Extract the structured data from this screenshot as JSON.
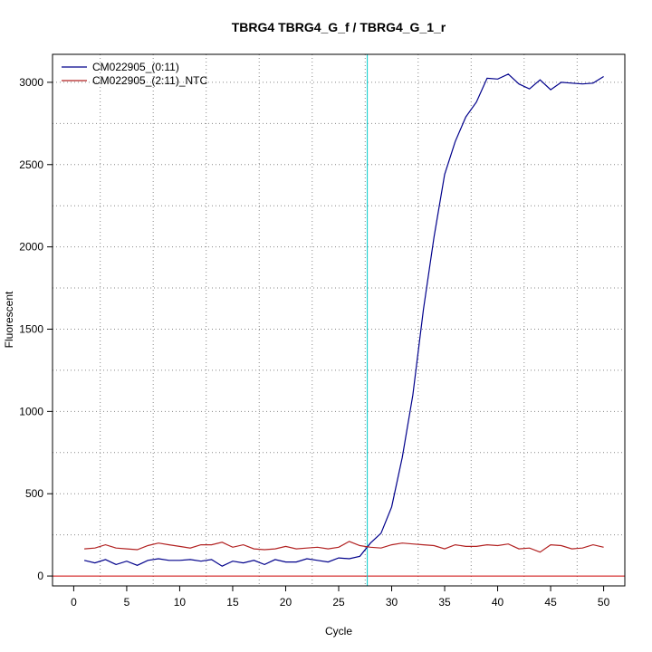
{
  "chart_data": {
    "type": "line",
    "title": "TBRG4  TBRG4_G_f / TBRG4_G_1_r",
    "xlabel": "Cycle",
    "ylabel": "Fluorescent",
    "xlim": [
      -2,
      52
    ],
    "ylim": [
      -60,
      3170
    ],
    "x_ticks": [
      0,
      5,
      10,
      15,
      20,
      25,
      30,
      35,
      40,
      45,
      50
    ],
    "y_ticks": [
      0,
      500,
      1000,
      1500,
      2000,
      2500,
      3000
    ],
    "grid": true,
    "legend_position": "top-left",
    "threshold_cycle": 27.7,
    "threshold_color": "#00cccc",
    "baseline": 0,
    "baseline_color": "#cc0000",
    "x": [
      1,
      2,
      3,
      4,
      5,
      6,
      7,
      8,
      9,
      10,
      11,
      12,
      13,
      14,
      15,
      16,
      17,
      18,
      19,
      20,
      21,
      22,
      23,
      24,
      25,
      26,
      27,
      28,
      29,
      30,
      31,
      32,
      33,
      34,
      35,
      36,
      37,
      38,
      39,
      40,
      41,
      42,
      43,
      44,
      45,
      46,
      47,
      48,
      49,
      50
    ],
    "series": [
      {
        "name": "CM022905_(0:11)",
        "color": "#00008b",
        "values": [
          95,
          80,
          100,
          70,
          90,
          65,
          95,
          105,
          95,
          95,
          100,
          90,
          100,
          60,
          90,
          80,
          95,
          70,
          100,
          85,
          85,
          105,
          95,
          85,
          110,
          105,
          120,
          200,
          260,
          420,
          720,
          1100,
          1620,
          2060,
          2440,
          2640,
          2790,
          2880,
          3025,
          3020,
          3050,
          2990,
          2960,
          3015,
          2955,
          3000,
          2995,
          2990,
          2995,
          3035
        ]
      },
      {
        "name": "CM022905_(2:11)_NTC",
        "color": "#b22222",
        "values": [
          165,
          170,
          190,
          170,
          165,
          160,
          185,
          200,
          190,
          180,
          170,
          190,
          190,
          205,
          175,
          190,
          165,
          160,
          165,
          180,
          165,
          170,
          175,
          165,
          175,
          210,
          185,
          175,
          170,
          190,
          200,
          195,
          190,
          185,
          165,
          190,
          180,
          180,
          190,
          185,
          195,
          165,
          170,
          145,
          190,
          185,
          165,
          170,
          190,
          175
        ]
      }
    ]
  }
}
